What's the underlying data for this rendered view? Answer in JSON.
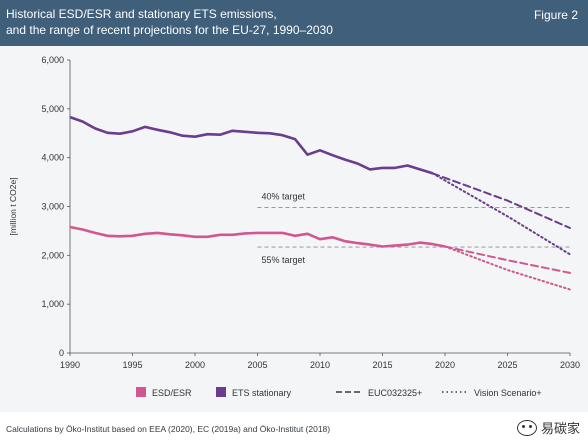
{
  "header": {
    "title_line1": "Historical ESD/ESR and stationary ETS emissions,",
    "title_line2": "and the range of recent projections for the EU-27, 1990–2030",
    "figure_label": "Figure 2"
  },
  "footer": {
    "source": "Calculations by Öko-Institut based on EEA (2020), EC (2019a) and Öko-Institut (2018)"
  },
  "watermark": {
    "text": "易碳家",
    "icon": "wechat-icon"
  },
  "colors": {
    "header_bg": "#3f5f7a",
    "panel_bg": "#f4f5f6",
    "esd": "#d1588f",
    "ets": "#6a3d8e",
    "target_line": "#8a8a8a"
  },
  "chart_data": {
    "type": "line",
    "ylabel": "[million t CO2e]",
    "xlabel": "",
    "xlim": [
      1990,
      2030
    ],
    "ylim": [
      0,
      6000
    ],
    "x_ticks": [
      1990,
      1995,
      2000,
      2005,
      2010,
      2015,
      2020,
      2025,
      2030
    ],
    "y_ticks": [
      0,
      1000,
      2000,
      3000,
      4000,
      5000,
      6000
    ],
    "y_tick_labels": [
      "0",
      "1,000",
      "2,000",
      "3,000",
      "4,000",
      "5,000",
      "6,000"
    ],
    "grid": false,
    "legend_position": "bottom",
    "series": [
      {
        "name": "ESD/ESR",
        "style": "solid",
        "color": "#d1588f",
        "points": [
          [
            1990,
            2580
          ],
          [
            1991,
            2530
          ],
          [
            1992,
            2460
          ],
          [
            1993,
            2400
          ],
          [
            1994,
            2390
          ],
          [
            1995,
            2400
          ],
          [
            1996,
            2440
          ],
          [
            1997,
            2460
          ],
          [
            1998,
            2430
          ],
          [
            1999,
            2410
          ],
          [
            2000,
            2380
          ],
          [
            2001,
            2380
          ],
          [
            2002,
            2420
          ],
          [
            2003,
            2420
          ],
          [
            2004,
            2450
          ],
          [
            2005,
            2460
          ],
          [
            2006,
            2460
          ],
          [
            2007,
            2460
          ],
          [
            2008,
            2400
          ],
          [
            2009,
            2440
          ],
          [
            2010,
            2330
          ],
          [
            2011,
            2370
          ],
          [
            2012,
            2290
          ],
          [
            2013,
            2250
          ],
          [
            2014,
            2220
          ],
          [
            2015,
            2180
          ],
          [
            2016,
            2200
          ],
          [
            2017,
            2220
          ],
          [
            2018,
            2260
          ],
          [
            2019,
            2230
          ],
          [
            2020,
            2180
          ]
        ]
      },
      {
        "name": "ETS stationary",
        "style": "solid",
        "color": "#6a3d8e",
        "points": [
          [
            1990,
            4830
          ],
          [
            1991,
            4740
          ],
          [
            1992,
            4600
          ],
          [
            1993,
            4510
          ],
          [
            1994,
            4490
          ],
          [
            1995,
            4540
          ],
          [
            1996,
            4630
          ],
          [
            1997,
            4570
          ],
          [
            1998,
            4520
          ],
          [
            1999,
            4450
          ],
          [
            2000,
            4430
          ],
          [
            2001,
            4480
          ],
          [
            2002,
            4470
          ],
          [
            2003,
            4550
          ],
          [
            2004,
            4530
          ],
          [
            2005,
            4510
          ],
          [
            2006,
            4500
          ],
          [
            2007,
            4460
          ],
          [
            2008,
            4380
          ],
          [
            2009,
            4060
          ],
          [
            2010,
            4150
          ],
          [
            2011,
            4050
          ],
          [
            2012,
            3960
          ],
          [
            2013,
            3880
          ],
          [
            2014,
            3760
          ],
          [
            2015,
            3790
          ],
          [
            2016,
            3790
          ],
          [
            2017,
            3840
          ],
          [
            2018,
            3760
          ],
          [
            2019,
            3680
          ]
        ]
      },
      {
        "name": "EUC032325+",
        "style": "dashed",
        "segments": [
          {
            "color": "#6a3d8e",
            "points": [
              [
                2019,
                3680
              ],
              [
                2025,
                3120
              ],
              [
                2030,
                2560
              ]
            ]
          },
          {
            "color": "#d1588f",
            "points": [
              [
                2020,
                2180
              ],
              [
                2025,
                1900
              ],
              [
                2030,
                1640
              ]
            ]
          }
        ]
      },
      {
        "name": "Vision Scenario+",
        "style": "dotted",
        "segments": [
          {
            "color": "#6a3d8e",
            "points": [
              [
                2019,
                3680
              ],
              [
                2025,
                2800
              ],
              [
                2030,
                2020
              ]
            ]
          },
          {
            "color": "#d1588f",
            "points": [
              [
                2020,
                2180
              ],
              [
                2025,
                1700
              ],
              [
                2030,
                1300
              ]
            ]
          }
        ]
      }
    ],
    "annotations": [
      {
        "label": "40% target",
        "y": 2980,
        "x_start": 2005,
        "x_end": 2030
      },
      {
        "label": "55% target",
        "y": 2170,
        "x_start": 2005,
        "x_end": 2030
      }
    ],
    "legend": [
      {
        "label": "ESD/ESR",
        "kind": "swatch",
        "color": "#d1588f"
      },
      {
        "label": "ETS stationary",
        "kind": "swatch",
        "color": "#6a3d8e"
      },
      {
        "label": "EUC032325+",
        "kind": "dashed",
        "color": "#555555"
      },
      {
        "label": "Vision Scenario+",
        "kind": "dotted",
        "color": "#555555"
      }
    ]
  }
}
